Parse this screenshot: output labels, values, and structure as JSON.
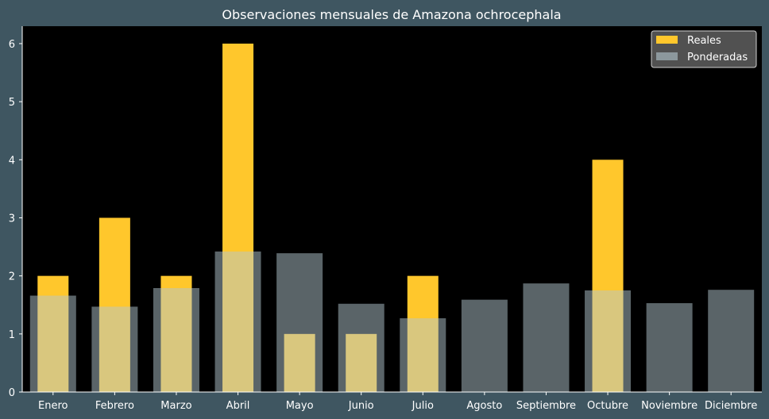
{
  "chart_data": {
    "type": "bar",
    "title": "Observaciones mensuales de Amazona ochrocephala",
    "xlabel": "",
    "ylabel": "",
    "ylim": [
      0,
      6.3
    ],
    "yticks": [
      0,
      1,
      2,
      3,
      4,
      5,
      6
    ],
    "grid": false,
    "legend_position": "top-right",
    "categories": [
      "Enero",
      "Febrero",
      "Marzo",
      "Abril",
      "Mayo",
      "Junio",
      "Julio",
      "Agosto",
      "Septiembre",
      "Octubre",
      "Noviembre",
      "Diciembre"
    ],
    "series": [
      {
        "name": "Reales",
        "color": "#ffc72c",
        "values": [
          2,
          3,
          2,
          6,
          1,
          1,
          2,
          0,
          0,
          4,
          0,
          0
        ]
      },
      {
        "name": "Ponderadas",
        "color": "#b4c8d0",
        "values": [
          1.66,
          1.47,
          1.79,
          2.42,
          2.39,
          1.52,
          1.27,
          1.59,
          1.87,
          1.75,
          1.53,
          1.76
        ]
      }
    ]
  },
  "colors": {
    "figure_bg": "#3f5661",
    "plot_bg": "#000000",
    "axis": "#ffffff",
    "legend_bg": "#5a5a5a",
    "legend_border": "#cfcfcf"
  }
}
